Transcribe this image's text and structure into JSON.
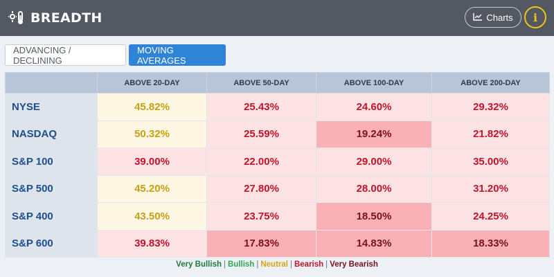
{
  "header": {
    "title": "BREADTH",
    "title_icon": "thermometer-icon",
    "charts_label": "Charts",
    "charts_icon": "line-chart-icon",
    "info_label": "i",
    "info_icon": "info-icon"
  },
  "tabs": [
    {
      "label": "ADVANCING / DECLINING",
      "active": false
    },
    {
      "label": "MOVING AVERAGES",
      "active": true
    }
  ],
  "table": {
    "corner": "",
    "columns": [
      "ABOVE 20-DAY",
      "ABOVE 50-DAY",
      "ABOVE 100-DAY",
      "ABOVE 200-DAY"
    ],
    "rows": [
      {
        "label": "NYSE",
        "cells": [
          {
            "value": "45.82%",
            "status": "neutral"
          },
          {
            "value": "25.43%",
            "status": "bearish"
          },
          {
            "value": "24.60%",
            "status": "bearish"
          },
          {
            "value": "29.32%",
            "status": "bearish"
          }
        ]
      },
      {
        "label": "NASDAQ",
        "cells": [
          {
            "value": "50.32%",
            "status": "neutral"
          },
          {
            "value": "25.59%",
            "status": "bearish"
          },
          {
            "value": "19.24%",
            "status": "verybearish"
          },
          {
            "value": "21.82%",
            "status": "bearish"
          }
        ]
      },
      {
        "label": "S&P 100",
        "cells": [
          {
            "value": "39.00%",
            "status": "bearish"
          },
          {
            "value": "22.00%",
            "status": "bearish"
          },
          {
            "value": "29.00%",
            "status": "bearish"
          },
          {
            "value": "35.00%",
            "status": "bearish"
          }
        ]
      },
      {
        "label": "S&P 500",
        "cells": [
          {
            "value": "45.20%",
            "status": "neutral"
          },
          {
            "value": "27.80%",
            "status": "bearish"
          },
          {
            "value": "28.00%",
            "status": "bearish"
          },
          {
            "value": "31.20%",
            "status": "bearish"
          }
        ]
      },
      {
        "label": "S&P 400",
        "cells": [
          {
            "value": "43.50%",
            "status": "neutral"
          },
          {
            "value": "23.75%",
            "status": "bearish"
          },
          {
            "value": "18.50%",
            "status": "verybearish"
          },
          {
            "value": "24.25%",
            "status": "bearish"
          }
        ]
      },
      {
        "label": "S&P 600",
        "cells": [
          {
            "value": "39.83%",
            "status": "bearish"
          },
          {
            "value": "17.83%",
            "status": "verybearish"
          },
          {
            "value": "14.83%",
            "status": "verybearish"
          },
          {
            "value": "18.33%",
            "status": "verybearish"
          }
        ]
      }
    ]
  },
  "legend": [
    {
      "label": "Very Bullish",
      "color": "#1f7a3a"
    },
    {
      "label": "Bullish",
      "color": "#2fa84f"
    },
    {
      "label": "Neutral",
      "color": "#d4a50f"
    },
    {
      "label": "Bearish",
      "color": "#c5122b"
    },
    {
      "label": "Very Bearish",
      "color": "#7a1018"
    }
  ],
  "colors": {
    "header_bg": "#535862",
    "tab_active": "#2f84d8",
    "neutral_bg": "#fdf7e3",
    "bearish_bg": "#fde3e4",
    "very_bearish_bg": "#fab1b6"
  }
}
